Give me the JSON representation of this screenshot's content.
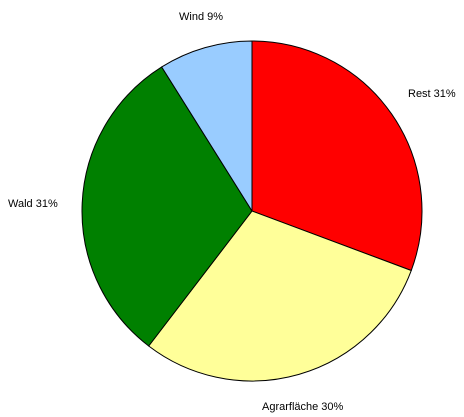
{
  "chart_data": {
    "type": "pie",
    "title": "",
    "slices": [
      {
        "label": "Rest",
        "value": 31,
        "color": "#ff0000",
        "display": "Rest 31%"
      },
      {
        "label": "Agrarfläche",
        "value": 30,
        "color": "#ffff99",
        "display": "Agrarfläche 30%"
      },
      {
        "label": "Wald",
        "value": 31,
        "color": "#008000",
        "display": "Wald 31%"
      },
      {
        "label": "Wind",
        "value": 9,
        "color": "#99ccff",
        "display": "Wind 9%"
      }
    ],
    "start": "12 o'clock",
    "direction": "clockwise",
    "legend": "none",
    "labels": "outside"
  }
}
